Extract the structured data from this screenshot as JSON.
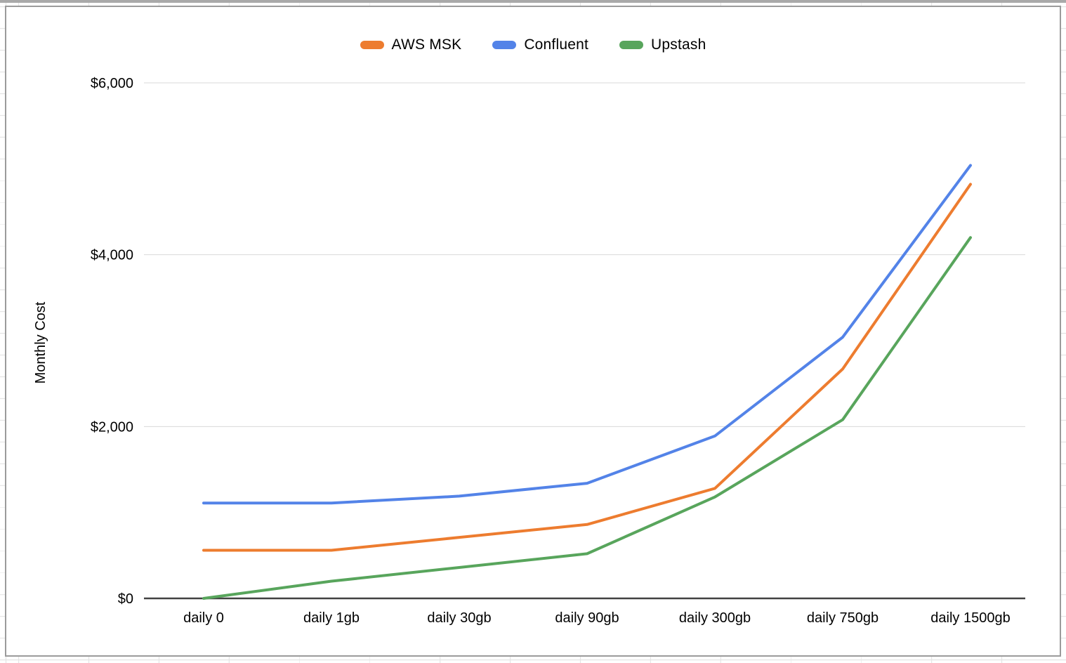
{
  "page": {
    "background": "spreadsheet-grid",
    "grid_color": "#e4e4e4",
    "top_bar_color": "#a9a9a9",
    "card_border_color": "#9b9b9b",
    "card_background": "#ffffff"
  },
  "chart_data": {
    "type": "line",
    "title": "",
    "xlabel": "",
    "ylabel": "Monthly Cost",
    "categories": [
      "daily 0",
      "daily 1gb",
      "daily 30gb",
      "daily 90gb",
      "daily 300gb",
      "daily 750gb",
      "daily 1500gb"
    ],
    "series": [
      {
        "name": "AWS MSK",
        "color": "#ED7C2F",
        "values": [
          560,
          560,
          710,
          860,
          1280,
          2670,
          4820
        ]
      },
      {
        "name": "Confluent",
        "color": "#5383E8",
        "values": [
          1110,
          1110,
          1190,
          1340,
          1890,
          3040,
          5040
        ]
      },
      {
        "name": "Upstash",
        "color": "#58A55C",
        "values": [
          0,
          200,
          360,
          520,
          1180,
          2080,
          4200
        ]
      }
    ],
    "ylim": [
      0,
      6000
    ],
    "yticks": [
      {
        "value": 0,
        "label": "$0"
      },
      {
        "value": 2000,
        "label": "$2,000"
      },
      {
        "value": 4000,
        "label": "$4,000"
      },
      {
        "value": 6000,
        "label": "$6,000"
      }
    ],
    "grid": true,
    "legend_position": "top",
    "gridline_color": "#d9d9d9",
    "axis_color": "#424242",
    "tick_label_color": "#000000"
  }
}
